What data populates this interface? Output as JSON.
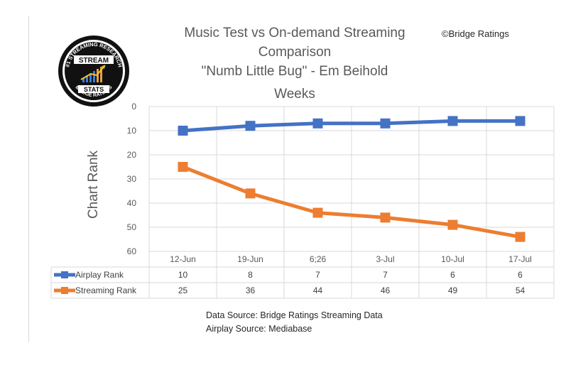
{
  "title_lines": [
    "Music Test vs On-demand Streaming",
    "Comparison",
    "\"Numb Little Bug\" - Em Beihold"
  ],
  "copyright": "©Bridge Ratings",
  "logo": {
    "top_text": "#1 STREAMING RESEARCH",
    "middle_line1": "STREAM",
    "middle_line2": "STATS",
    "bottom_text": "BRIDGE RATINGS"
  },
  "footer": {
    "line1": "Data Source: Bridge Ratings Streaming Data",
    "line2": "Airplay Source: Mediabase"
  },
  "chart_data": {
    "type": "line",
    "title": "Music Test vs On-demand Streaming Comparison \"Numb Little Bug\" - Em Beihold",
    "xlabel": "Weeks",
    "ylabel": "Chart Rank",
    "ylim": [
      60,
      0
    ],
    "y_reversed": true,
    "yticks": [
      0,
      10,
      20,
      30,
      40,
      50,
      60
    ],
    "categories": [
      "12-Jun",
      "19-Jun",
      "6;26",
      "3-Jul",
      "10-Jul",
      "17-Jul"
    ],
    "series": [
      {
        "name": "Airplay Rank",
        "color": "#4472C4",
        "marker": "square",
        "values": [
          10,
          8,
          7,
          7,
          6,
          6
        ]
      },
      {
        "name": "Streaming Rank",
        "color": "#ED7D31",
        "marker": "square",
        "values": [
          25,
          36,
          44,
          46,
          49,
          54
        ]
      }
    ],
    "grid": true,
    "legend": "data-table-below"
  }
}
